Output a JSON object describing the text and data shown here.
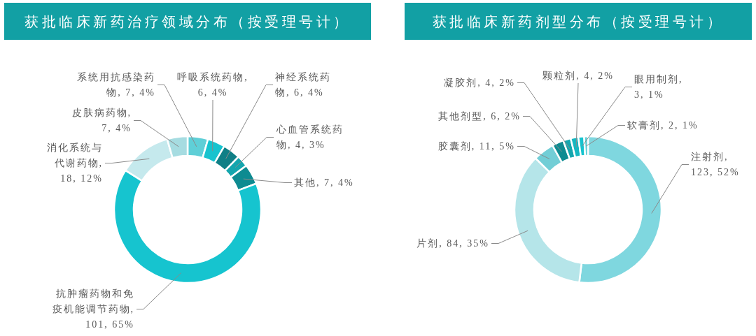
{
  "chart_data": [
    {
      "type": "donut",
      "title": "获批临床新药治疗领域分布（按受理号计）",
      "categories": [
        "系统用抗感染药物",
        "呼吸系统药物",
        "神经系统药物",
        "心血管系统药物",
        "其他",
        "抗肿瘤药物和免疫机能调节药物",
        "消化系统与代谢药物",
        "皮肤病药物"
      ],
      "values": [
        7,
        6,
        6,
        4,
        7,
        101,
        18,
        7
      ],
      "colors": [
        "#5fcfd7",
        "#17c3ce",
        "#0f7f86",
        "#14a6ae",
        "#0e8b91",
        "#16c4cf",
        "#c5e9ed",
        "#a6dce1"
      ],
      "value_labels": [
        ", 7, 4%",
        ", 6, 4%",
        ", 6, 4%",
        ", 4, 3%",
        ", 7, 4%",
        ", 101, 65%",
        ", 18, 12%",
        ", 7, 4%"
      ]
    },
    {
      "type": "donut",
      "title": "获批临床新药剂型分布（按受理号计）",
      "categories": [
        "注射剂",
        "片剂",
        "胶囊剂",
        "其他剂型",
        "凝胶剂",
        "颗粒剂",
        "眼用制剂",
        "软膏剂"
      ],
      "values": [
        123,
        84,
        11,
        6,
        4,
        4,
        3,
        2
      ],
      "colors": [
        "#7fd7df",
        "#b5e5e9",
        "#72ced6",
        "#0e8b91",
        "#14a6ae",
        "#15b7c1",
        "#17c3ce",
        "#5fcfd7"
      ],
      "value_labels": [
        ", 123, 52%",
        ", 84, 35%",
        ", 11, 5%",
        ", 6, 2%",
        ", 4, 2%",
        ", 4, 2%",
        ", 3, 1%",
        ", 2, 1%"
      ]
    }
  ]
}
